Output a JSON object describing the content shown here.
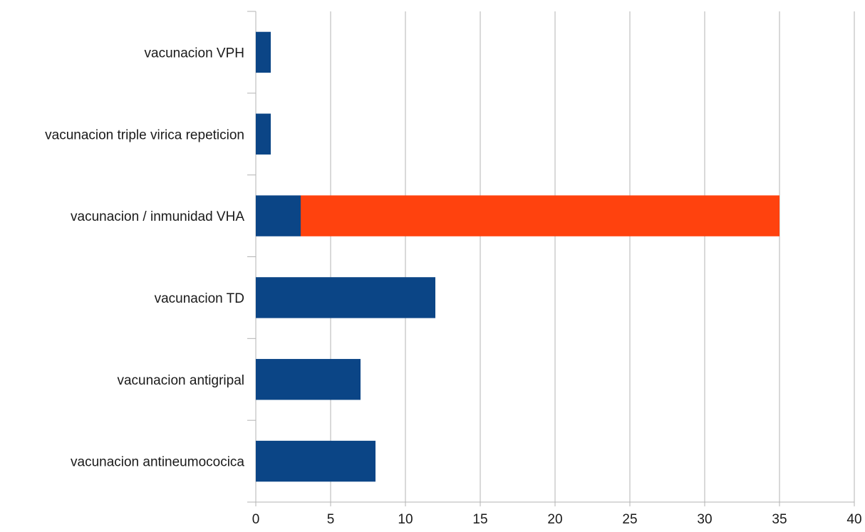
{
  "chart_data": {
    "type": "bar",
    "orientation": "horizontal",
    "stacked": true,
    "categories": [
      "vacunacion VPH",
      "vacunacion triple virica repeticion",
      "vacunacion / inmunidad VHA",
      "vacunacion TD",
      "vacunacion antigripal",
      "vacunacion antineumococica"
    ],
    "series": [
      {
        "values": [
          1,
          1,
          3,
          12,
          7,
          8
        ],
        "color": "#0b4586"
      },
      {
        "values": [
          0,
          0,
          32,
          0,
          0,
          0
        ],
        "color": "#ff420e"
      }
    ],
    "xlim": [
      0,
      40
    ],
    "xticks": [
      "0",
      "5",
      "10",
      "15",
      "20",
      "25",
      "30",
      "35",
      "40"
    ],
    "grid": true,
    "legend": "none",
    "title": "",
    "xlabel": "",
    "ylabel": ""
  }
}
